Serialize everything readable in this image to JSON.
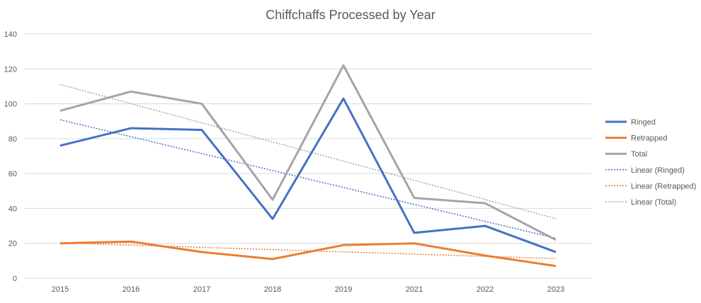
{
  "chart_data": {
    "type": "line",
    "title": "Chiffchaffs Processed by Year",
    "xlabel": "",
    "ylabel": "",
    "categories": [
      "2015",
      "2016",
      "2017",
      "2018",
      "2019",
      "2021",
      "2022",
      "2023"
    ],
    "ylim": [
      0,
      140
    ],
    "yticks": [
      0,
      20,
      40,
      60,
      80,
      100,
      120,
      140
    ],
    "grid": true,
    "legend_position": "right",
    "series": [
      {
        "name": "Ringed",
        "color": "#4472C4",
        "values": [
          76,
          86,
          85,
          34,
          103,
          26,
          30,
          15
        ]
      },
      {
        "name": "Retrapped",
        "color": "#ED7D31",
        "values": [
          20,
          21,
          15,
          11,
          19,
          20,
          13,
          7
        ]
      },
      {
        "name": "Total",
        "color": "#A5A5A5",
        "values": [
          96,
          107,
          100,
          45,
          122,
          46,
          43,
          22
        ]
      }
    ],
    "trendlines": [
      {
        "name": "Linear (Ringed)",
        "of": 0
      },
      {
        "name": "Linear (Retrapped)",
        "of": 1
      },
      {
        "name": "Linear (Total)",
        "of": 2
      }
    ]
  }
}
